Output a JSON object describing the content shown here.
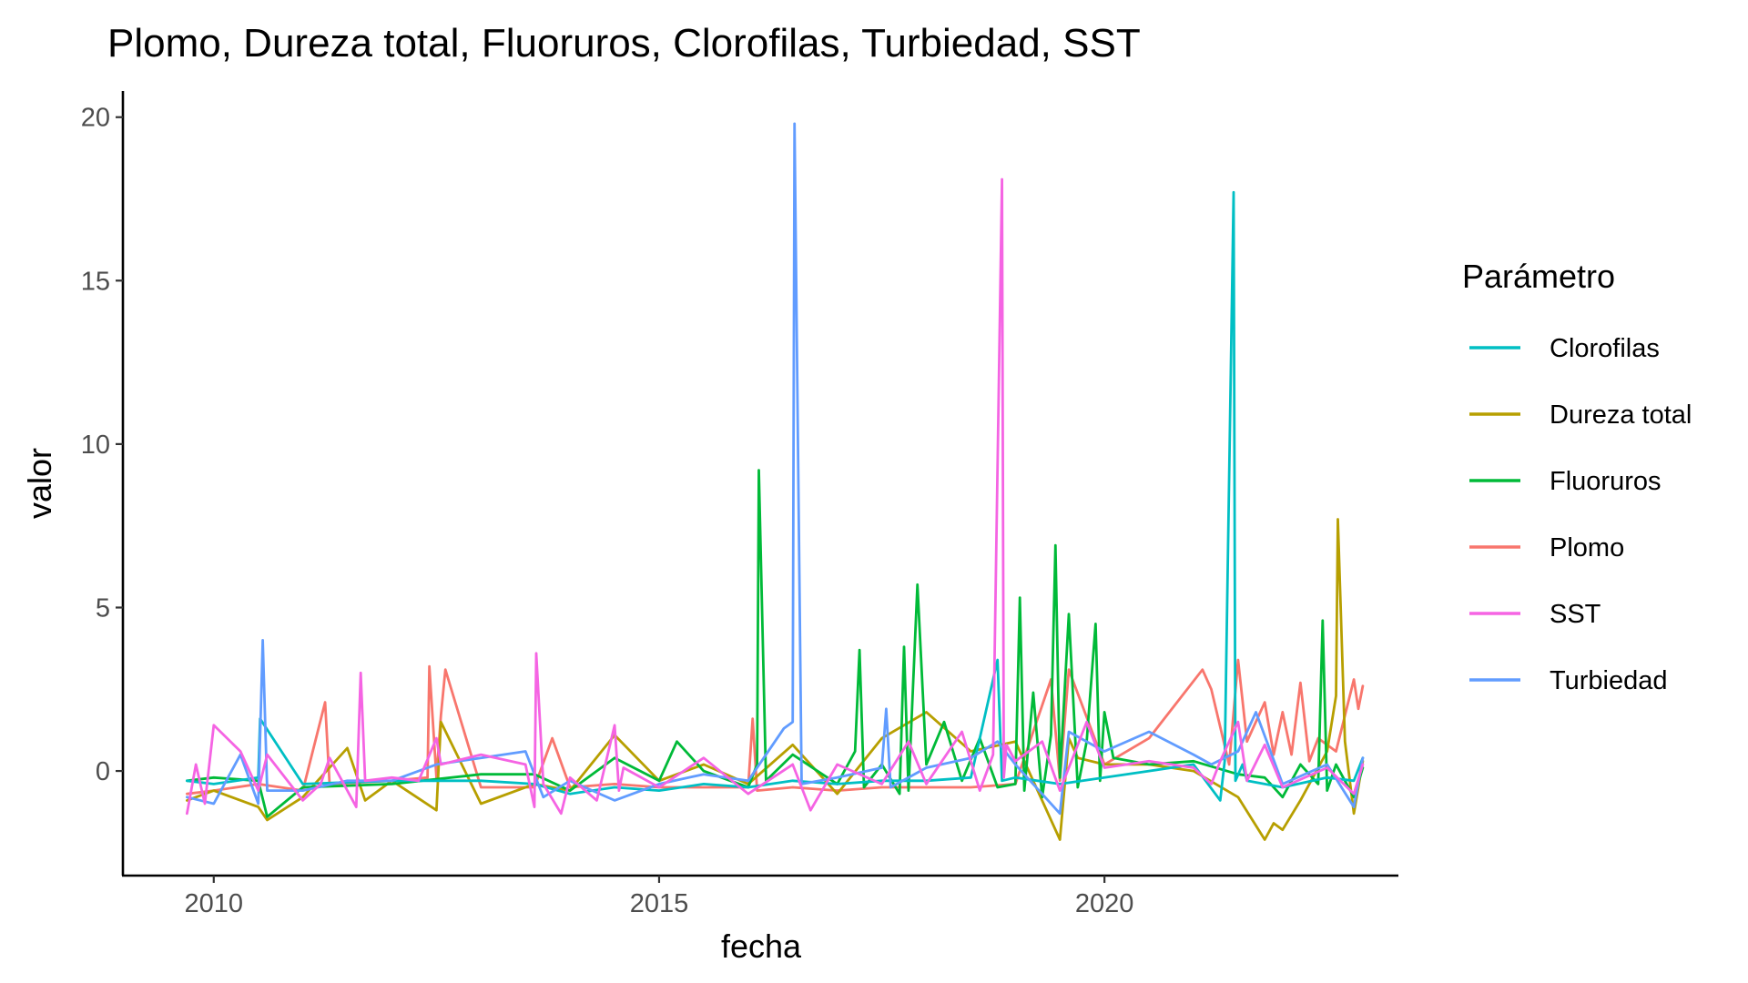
{
  "chart_data": {
    "type": "line",
    "title": "Plomo, Dureza total, Fluoruros, Clorofilas, Turbiedad, SST",
    "xlabel": "fecha",
    "ylabel": "valor",
    "legend_title": "Parámetro",
    "legend_position": "right",
    "grid": false,
    "xlim": [
      2008.98,
      2023.3
    ],
    "ylim": [
      -3.2,
      20.8
    ],
    "x_ticks": [
      {
        "value": 2010,
        "label": "2010"
      },
      {
        "value": 2015,
        "label": "2015"
      },
      {
        "value": 2020,
        "label": "2020"
      }
    ],
    "y_ticks": [
      {
        "value": 0,
        "label": "0"
      },
      {
        "value": 5,
        "label": "5"
      },
      {
        "value": 10,
        "label": "10"
      },
      {
        "value": 15,
        "label": "15"
      },
      {
        "value": 20,
        "label": "20"
      }
    ],
    "series": [
      {
        "name": "Plomo",
        "color": "#F8766D",
        "x": [
          2009.7,
          2010.0,
          2010.5,
          2011.0,
          2011.25,
          2011.3,
          2012.0,
          2012.4,
          2012.42,
          2012.5,
          2012.55,
          2012.6,
          2013.0,
          2013.6,
          2013.8,
          2014.0,
          2014.5,
          2015.0,
          2015.5,
          2016.0,
          2016.05,
          2016.1,
          2016.5,
          2017.0,
          2017.5,
          2018.0,
          2018.5,
          2019.0,
          2019.4,
          2019.5,
          2019.6,
          2020.0,
          2020.5,
          2021.1,
          2021.2,
          2021.4,
          2021.5,
          2021.6,
          2021.8,
          2021.9,
          2022.0,
          2022.1,
          2022.2,
          2022.3,
          2022.4,
          2022.6,
          2022.8,
          2022.85,
          2022.9
        ],
        "values": [
          -0.7,
          -0.6,
          -0.4,
          -0.6,
          2.1,
          -0.4,
          -0.3,
          -0.2,
          3.2,
          -0.2,
          1.7,
          3.1,
          -0.5,
          -0.5,
          1.0,
          -0.5,
          -0.4,
          -0.5,
          -0.5,
          -0.5,
          1.6,
          -0.6,
          -0.5,
          -0.6,
          -0.5,
          -0.5,
          -0.5,
          -0.4,
          2.8,
          -0.3,
          3.1,
          0.2,
          1.0,
          3.1,
          2.5,
          0.2,
          3.4,
          0.9,
          2.1,
          0.5,
          1.8,
          0.5,
          2.7,
          0.3,
          1.0,
          0.6,
          2.8,
          1.9,
          2.6
        ]
      },
      {
        "name": "Dureza total",
        "color": "#B79F00",
        "x": [
          2009.7,
          2010.0,
          2010.5,
          2010.6,
          2011.0,
          2011.5,
          2011.7,
          2012.0,
          2012.5,
          2012.55,
          2013.0,
          2013.6,
          2014.0,
          2014.5,
          2015.0,
          2015.5,
          2016.0,
          2016.5,
          2017.0,
          2017.5,
          2018.0,
          2018.5,
          2019.0,
          2019.5,
          2019.6,
          2019.7,
          2020.0,
          2020.5,
          2021.0,
          2021.5,
          2021.8,
          2021.9,
          2022.0,
          2022.2,
          2022.5,
          2022.6,
          2022.62,
          2022.7,
          2022.8,
          2022.9
        ],
        "values": [
          -0.9,
          -0.6,
          -1.1,
          -1.5,
          -0.8,
          0.7,
          -0.9,
          -0.3,
          -1.2,
          1.5,
          -1.0,
          -0.4,
          -0.6,
          1.1,
          -0.3,
          0.2,
          -0.4,
          0.8,
          -0.7,
          1.0,
          1.8,
          0.6,
          0.9,
          -2.1,
          1.0,
          0.4,
          0.2,
          0.2,
          0.0,
          -0.8,
          -2.1,
          -1.6,
          -1.8,
          -0.9,
          0.6,
          2.3,
          7.7,
          0.9,
          -1.3,
          0.3
        ]
      },
      {
        "name": "Fluoruros",
        "color": "#00BA38",
        "x": [
          2009.7,
          2010.0,
          2010.5,
          2010.6,
          2011.0,
          2012.0,
          2013.0,
          2013.6,
          2014.0,
          2014.5,
          2015.0,
          2015.2,
          2015.5,
          2016.0,
          2016.1,
          2016.12,
          2016.2,
          2016.5,
          2017.0,
          2017.2,
          2017.25,
          2017.3,
          2017.5,
          2017.7,
          2017.75,
          2017.8,
          2017.9,
          2018.0,
          2018.2,
          2018.4,
          2018.6,
          2018.8,
          2019.0,
          2019.05,
          2019.1,
          2019.2,
          2019.3,
          2019.4,
          2019.45,
          2019.5,
          2019.6,
          2019.7,
          2019.8,
          2019.9,
          2019.95,
          2020.0,
          2020.1,
          2020.5,
          2021.0,
          2021.5,
          2021.8,
          2022.0,
          2022.2,
          2022.4,
          2022.45,
          2022.5,
          2022.6,
          2022.8,
          2022.9
        ],
        "values": [
          -0.3,
          -0.2,
          -0.3,
          -1.4,
          -0.5,
          -0.4,
          -0.1,
          -0.1,
          -0.6,
          0.4,
          -0.3,
          0.9,
          0.0,
          -0.5,
          0.2,
          9.2,
          -0.3,
          0.5,
          -0.4,
          0.6,
          3.7,
          -0.5,
          0.2,
          -0.7,
          3.8,
          -0.6,
          5.7,
          0.2,
          1.5,
          -0.3,
          1.0,
          -0.5,
          -0.4,
          5.3,
          -0.6,
          2.4,
          -0.8,
          1.1,
          6.9,
          -0.2,
          4.8,
          -0.5,
          0.9,
          4.5,
          -0.3,
          1.8,
          0.4,
          0.2,
          0.3,
          -0.1,
          -0.2,
          -0.8,
          0.2,
          -0.4,
          4.6,
          -0.6,
          0.2,
          -0.8,
          0.1
        ]
      },
      {
        "name": "Clorofilas",
        "color": "#00BFC4",
        "x": [
          2009.7,
          2010.0,
          2010.5,
          2010.52,
          2011.0,
          2012.0,
          2013.0,
          2013.6,
          2014.0,
          2014.5,
          2015.0,
          2015.5,
          2016.0,
          2016.5,
          2017.0,
          2017.5,
          2018.0,
          2018.5,
          2018.8,
          2018.85,
          2019.0,
          2019.5,
          2020.0,
          2020.5,
          2021.0,
          2021.3,
          2021.35,
          2021.45,
          2021.47,
          2021.55,
          2021.6,
          2022.0,
          2022.5,
          2022.8,
          2022.9
        ],
        "values": [
          -0.3,
          -0.4,
          -0.2,
          1.6,
          -0.4,
          -0.3,
          -0.3,
          -0.4,
          -0.7,
          -0.5,
          -0.6,
          -0.4,
          -0.5,
          -0.3,
          -0.4,
          -0.3,
          -0.3,
          -0.2,
          3.4,
          -0.3,
          -0.2,
          -0.4,
          -0.2,
          0.0,
          0.2,
          -0.9,
          0.3,
          17.7,
          -0.3,
          0.2,
          -0.3,
          -0.5,
          -0.2,
          -0.3,
          0.4
        ]
      },
      {
        "name": "Turbiedad",
        "color": "#619CFF",
        "x": [
          2009.7,
          2010.0,
          2010.3,
          2010.5,
          2010.55,
          2010.6,
          2011.0,
          2011.5,
          2012.0,
          2012.5,
          2013.0,
          2013.5,
          2013.7,
          2014.0,
          2014.5,
          2015.0,
          2015.5,
          2016.0,
          2016.4,
          2016.5,
          2016.52,
          2016.6,
          2017.0,
          2017.5,
          2017.55,
          2017.6,
          2018.0,
          2018.5,
          2018.8,
          2019.0,
          2019.5,
          2019.6,
          2020.0,
          2020.5,
          2021.0,
          2021.2,
          2021.5,
          2021.7,
          2022.0,
          2022.5,
          2022.8,
          2022.9
        ],
        "values": [
          -0.8,
          -1.0,
          0.5,
          -1.0,
          4.0,
          -0.6,
          -0.6,
          -0.3,
          -0.3,
          0.2,
          0.4,
          0.6,
          -0.8,
          -0.3,
          -0.9,
          -0.4,
          -0.1,
          -0.3,
          1.3,
          1.5,
          19.8,
          -0.4,
          -0.2,
          0.1,
          1.9,
          -0.5,
          0.1,
          0.4,
          0.9,
          0.2,
          -1.3,
          1.2,
          0.6,
          1.2,
          0.5,
          0.2,
          0.6,
          1.8,
          -0.4,
          0.2,
          -1.1,
          0.4
        ]
      },
      {
        "name": "SST",
        "color": "#F564E3",
        "x": [
          2009.7,
          2009.8,
          2009.9,
          2010.0,
          2010.3,
          2010.5,
          2010.6,
          2011.0,
          2011.2,
          2011.3,
          2011.6,
          2011.65,
          2011.7,
          2012.0,
          2012.3,
          2012.5,
          2012.55,
          2013.0,
          2013.5,
          2013.6,
          2013.62,
          2013.7,
          2013.9,
          2014.0,
          2014.3,
          2014.5,
          2014.55,
          2014.6,
          2015.0,
          2015.5,
          2016.0,
          2016.5,
          2016.7,
          2017.0,
          2017.5,
          2017.8,
          2018.0,
          2018.4,
          2018.6,
          2018.75,
          2018.85,
          2018.87,
          2018.9,
          2019.0,
          2019.3,
          2019.5,
          2019.8,
          2020.0,
          2020.5,
          2021.0,
          2021.2,
          2021.3,
          2021.5,
          2021.6,
          2021.8,
          2022.0,
          2022.5,
          2022.8,
          2022.9
        ],
        "values": [
          -1.3,
          0.2,
          -1.0,
          1.4,
          0.6,
          -0.6,
          0.5,
          -0.9,
          -0.4,
          0.4,
          -1.1,
          3.0,
          -0.3,
          -0.2,
          -0.3,
          1.0,
          0.2,
          0.5,
          0.2,
          -1.1,
          3.6,
          -0.4,
          -1.3,
          -0.2,
          -0.9,
          1.4,
          -0.6,
          0.1,
          -0.5,
          0.4,
          -0.7,
          0.2,
          -1.2,
          0.2,
          -0.4,
          0.9,
          -0.4,
          1.2,
          -0.6,
          0.5,
          18.1,
          -0.2,
          0.8,
          0.3,
          0.9,
          -0.6,
          1.5,
          0.1,
          0.3,
          0.1,
          -0.4,
          0.3,
          1.5,
          -0.3,
          0.8,
          -0.5,
          0.1,
          -0.7,
          0.2
        ]
      }
    ],
    "legend_order": [
      "Clorofilas",
      "Dureza total",
      "Fluoruros",
      "Plomo",
      "SST",
      "Turbiedad"
    ]
  }
}
